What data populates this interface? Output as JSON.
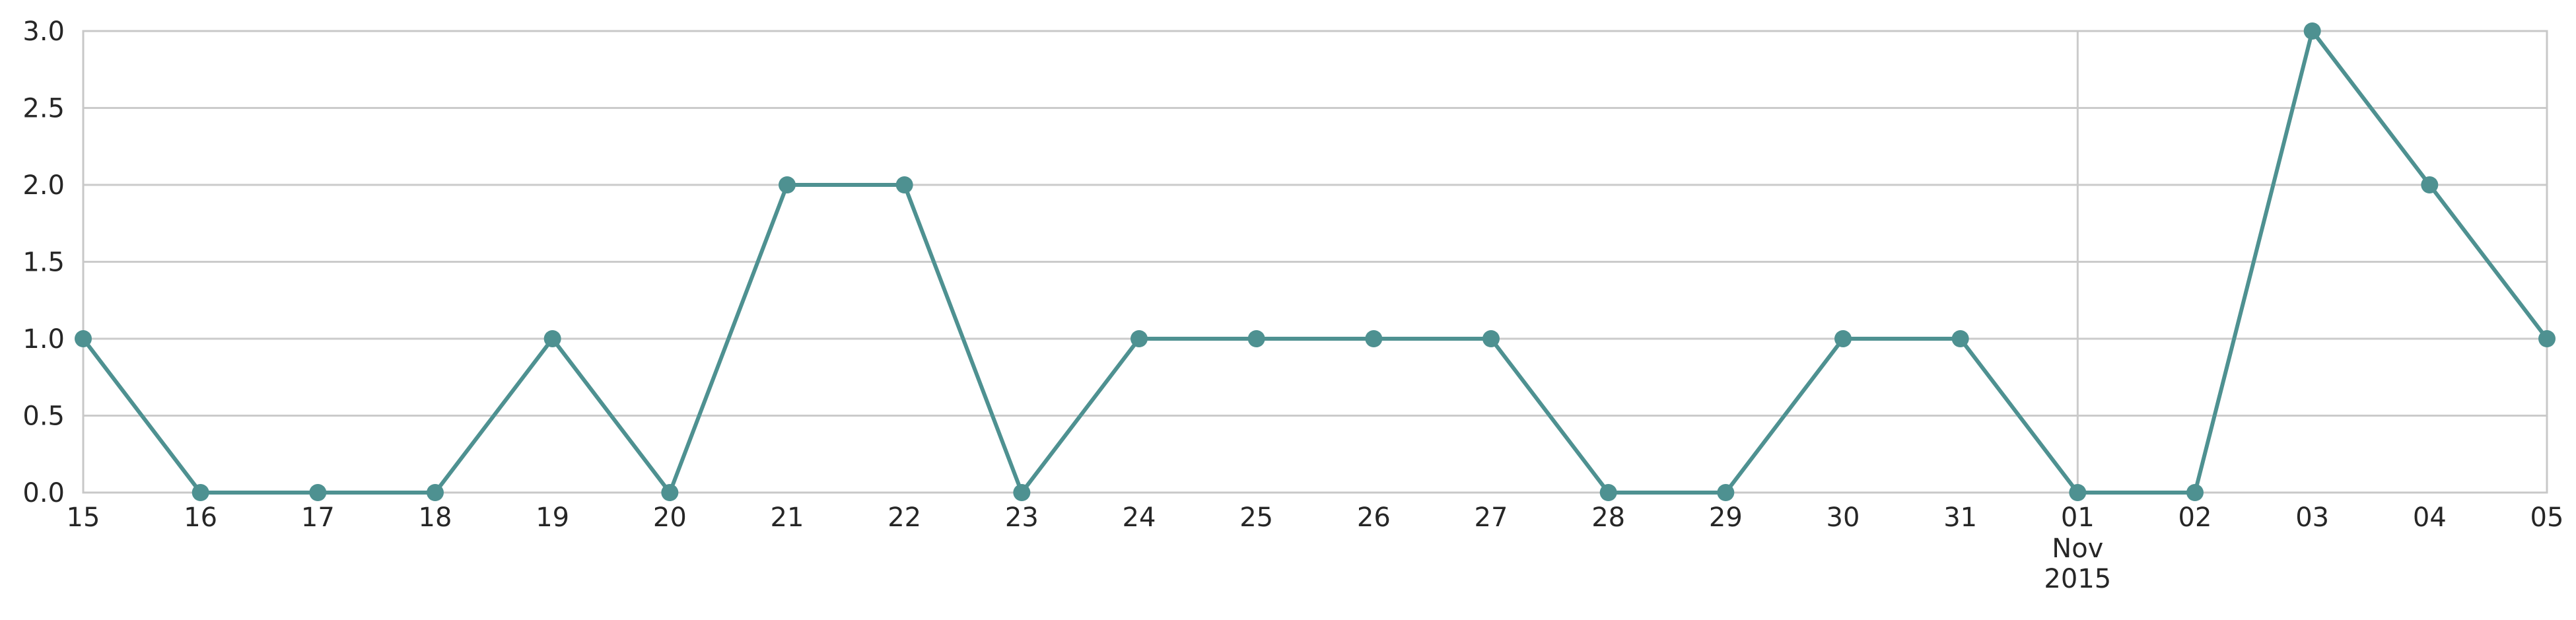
{
  "chart_data": {
    "type": "line",
    "title": "",
    "xlabel": "",
    "ylabel": "",
    "x": [
      "2015-10-15",
      "2015-10-16",
      "2015-10-17",
      "2015-10-18",
      "2015-10-19",
      "2015-10-20",
      "2015-10-21",
      "2015-10-22",
      "2015-10-23",
      "2015-10-24",
      "2015-10-25",
      "2015-10-26",
      "2015-10-27",
      "2015-10-28",
      "2015-10-29",
      "2015-10-30",
      "2015-10-31",
      "2015-11-01",
      "2015-11-02",
      "2015-11-03",
      "2015-11-04",
      "2015-11-05"
    ],
    "x_tick_labels": [
      {
        "label": "15"
      },
      {
        "label": "16"
      },
      {
        "label": "17"
      },
      {
        "label": "18"
      },
      {
        "label": "19"
      },
      {
        "label": "20"
      },
      {
        "label": "21"
      },
      {
        "label": "22"
      },
      {
        "label": "23"
      },
      {
        "label": "24"
      },
      {
        "label": "25"
      },
      {
        "label": "26"
      },
      {
        "label": "27"
      },
      {
        "label": "28"
      },
      {
        "label": "29"
      },
      {
        "label": "30"
      },
      {
        "label": "31"
      },
      {
        "label": "01",
        "month": "Nov",
        "year": "2015"
      },
      {
        "label": "02"
      },
      {
        "label": "03"
      },
      {
        "label": "04"
      },
      {
        "label": "05"
      }
    ],
    "series": [
      {
        "values": [
          1,
          0,
          0,
          0,
          1,
          0,
          2,
          2,
          0,
          1,
          1,
          1,
          1,
          0,
          0,
          1,
          1,
          0,
          0,
          3,
          2,
          1
        ],
        "color": "#4e9191"
      }
    ],
    "ylim": [
      0,
      3
    ],
    "y_ticks": [
      "0.0",
      "0.5",
      "1.0",
      "1.5",
      "2.0",
      "2.5",
      "3.0"
    ],
    "grid": true,
    "vertical_gridline_at": "2015-11-01",
    "marker": "circle"
  }
}
